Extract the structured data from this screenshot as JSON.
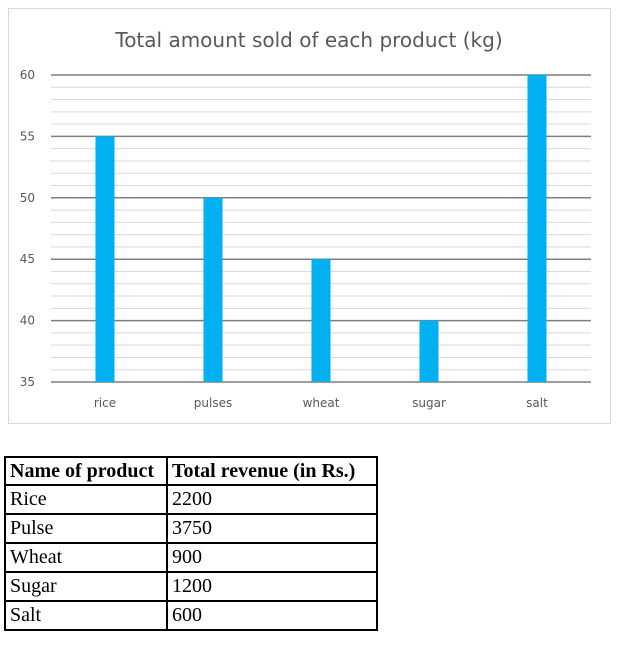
{
  "chart_data": {
    "type": "bar",
    "title": "Total amount sold of each product (kg)",
    "categories": [
      "rice",
      "pulses",
      "wheat",
      "sugar",
      "salt"
    ],
    "values": [
      55,
      50,
      45,
      40,
      60
    ],
    "ylim": [
      35,
      60
    ],
    "yticks": [
      35,
      40,
      45,
      50,
      55,
      60
    ],
    "xlabel": "",
    "ylabel": "",
    "grid": true,
    "bar_color": "#00b0f0"
  },
  "table": {
    "headers": [
      "Name of product",
      "Total revenue (in Rs.)"
    ],
    "rows": [
      [
        "Rice",
        "2200"
      ],
      [
        "Pulse",
        "3750"
      ],
      [
        "Wheat",
        "900"
      ],
      [
        "Sugar",
        "1200"
      ],
      [
        "Salt",
        "600"
      ]
    ]
  }
}
